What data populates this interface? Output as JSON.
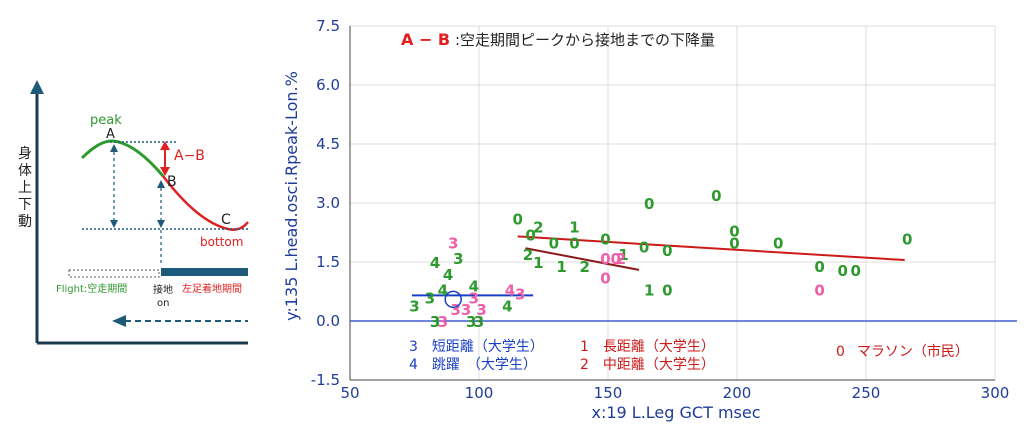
{
  "colors": {
    "green": "#2e9a2e",
    "red": "#e02020",
    "darkred": "#cc1a1a",
    "pink": "#ee5fa8",
    "blue": "#1a3fc7",
    "axis_text": "#1f3c99",
    "grid": "#dcdcdc",
    "navy": "#1e5a7a",
    "axis_dark": "#1c3b4f"
  },
  "diagram": {
    "y_axis_label": "身体上下動",
    "peak_label": "peak",
    "point_a": "A",
    "point_b": "B",
    "point_c": "C",
    "bottom_label": "bottom",
    "ab_label": "A−B",
    "flight_label": "Flight:空走期間",
    "contact_label_1": "接地",
    "contact_label_2": "on",
    "stance_label": "左足着地期間"
  },
  "chart_data": {
    "type": "scatter",
    "title_ab": "A − B",
    "title_rest": ":空走期間ピークから接地までの下降量",
    "xlabel": "x:19 L.Leg GCT msec",
    "ylabel": "y:135 L.head.osci.Rpeak-Lon.%",
    "xlim": [
      50,
      300
    ],
    "ylim": [
      -1.5,
      7.5
    ],
    "x_ticks": [
      50,
      100,
      150,
      200,
      250,
      300
    ],
    "y_ticks": [
      -1.5,
      0.0,
      1.5,
      3.0,
      4.5,
      6.0,
      7.5
    ],
    "x_tick_labels": [
      "50",
      "100",
      "150",
      "200",
      "250",
      "300"
    ],
    "y_tick_labels": [
      "-1.5",
      "0.0",
      "1.5",
      "3.0",
      "4.5",
      "6.0",
      "7.5"
    ],
    "grid": true,
    "baseline_y": 0.0,
    "legend": [
      {
        "marker": "3",
        "label": "短距離（大学生）",
        "color": "#1a3fc7"
      },
      {
        "marker": "4",
        "label": "跳躍　（大学生）",
        "color": "#1a3fc7"
      },
      {
        "marker": "1",
        "label": "長距離（大学生）",
        "color": "#cc1a1a"
      },
      {
        "marker": "2",
        "label": "中距離（大学生）",
        "color": "#cc1a1a"
      },
      {
        "marker": "0",
        "label": "マラソン（市民）",
        "color": "#cc1a1a"
      }
    ],
    "points": [
      {
        "x": 115,
        "y": 2.6,
        "m": "0",
        "c": "green"
      },
      {
        "x": 120,
        "y": 2.2,
        "m": "0",
        "c": "green"
      },
      {
        "x": 129,
        "y": 2.0,
        "m": "0",
        "c": "green"
      },
      {
        "x": 137,
        "y": 2.0,
        "m": "0",
        "c": "green"
      },
      {
        "x": 149,
        "y": 2.1,
        "m": "0",
        "c": "green"
      },
      {
        "x": 164,
        "y": 1.9,
        "m": "0",
        "c": "green"
      },
      {
        "x": 173,
        "y": 1.8,
        "m": "0",
        "c": "green"
      },
      {
        "x": 166,
        "y": 3.0,
        "m": "0",
        "c": "green"
      },
      {
        "x": 192,
        "y": 3.2,
        "m": "0",
        "c": "green"
      },
      {
        "x": 199,
        "y": 2.3,
        "m": "0",
        "c": "green"
      },
      {
        "x": 199,
        "y": 2.0,
        "m": "0",
        "c": "green"
      },
      {
        "x": 216,
        "y": 2.0,
        "m": "0",
        "c": "green"
      },
      {
        "x": 232,
        "y": 1.4,
        "m": "0",
        "c": "green"
      },
      {
        "x": 241,
        "y": 1.3,
        "m": "0",
        "c": "green"
      },
      {
        "x": 246,
        "y": 1.3,
        "m": "0",
        "c": "green"
      },
      {
        "x": 266,
        "y": 2.1,
        "m": "0",
        "c": "green"
      },
      {
        "x": 173,
        "y": 0.8,
        "m": "0",
        "c": "green"
      },
      {
        "x": 149,
        "y": 1.6,
        "m": "0",
        "c": "pink"
      },
      {
        "x": 153,
        "y": 1.6,
        "m": "0",
        "c": "pink"
      },
      {
        "x": 149,
        "y": 1.1,
        "m": "0",
        "c": "pink"
      },
      {
        "x": 232,
        "y": 0.8,
        "m": "0",
        "c": "pink"
      },
      {
        "x": 137,
        "y": 2.4,
        "m": "1",
        "c": "green"
      },
      {
        "x": 123,
        "y": 1.5,
        "m": "1",
        "c": "green"
      },
      {
        "x": 132,
        "y": 1.4,
        "m": "1",
        "c": "green"
      },
      {
        "x": 156,
        "y": 1.7,
        "m": "1",
        "c": "green"
      },
      {
        "x": 166,
        "y": 0.8,
        "m": "1",
        "c": "green"
      },
      {
        "x": 123,
        "y": 2.4,
        "m": "2",
        "c": "green"
      },
      {
        "x": 119,
        "y": 1.7,
        "m": "2",
        "c": "green"
      },
      {
        "x": 141,
        "y": 1.4,
        "m": "2",
        "c": "green"
      },
      {
        "x": 155,
        "y": 1.6,
        "m": "2",
        "c": "pink"
      },
      {
        "x": 83,
        "y": 1.5,
        "m": "4",
        "c": "green"
      },
      {
        "x": 88,
        "y": 1.2,
        "m": "4",
        "c": "green"
      },
      {
        "x": 98,
        "y": 0.9,
        "m": "4",
        "c": "green"
      },
      {
        "x": 111,
        "y": 0.4,
        "m": "4",
        "c": "green"
      },
      {
        "x": 86,
        "y": 0.8,
        "m": "4",
        "c": "green"
      },
      {
        "x": 92,
        "y": 1.6,
        "m": "3",
        "c": "green"
      },
      {
        "x": 75,
        "y": 0.4,
        "m": "3",
        "c": "green"
      },
      {
        "x": 81,
        "y": 0.6,
        "m": "3",
        "c": "green"
      },
      {
        "x": 83,
        "y": 0.0,
        "m": "3",
        "c": "green"
      },
      {
        "x": 97,
        "y": 0.0,
        "m": "3",
        "c": "green"
      },
      {
        "x": 100,
        "y": 0.0,
        "m": "3",
        "c": "green"
      },
      {
        "x": 90,
        "y": 2.0,
        "m": "3",
        "c": "pink"
      },
      {
        "x": 86,
        "y": 0.0,
        "m": "3",
        "c": "pink"
      },
      {
        "x": 91,
        "y": 0.3,
        "m": "3",
        "c": "pink"
      },
      {
        "x": 95,
        "y": 0.3,
        "m": "3",
        "c": "pink"
      },
      {
        "x": 101,
        "y": 0.3,
        "m": "3",
        "c": "pink"
      },
      {
        "x": 98,
        "y": 0.6,
        "m": "3",
        "c": "pink"
      },
      {
        "x": 116,
        "y": 0.7,
        "m": "3",
        "c": "pink"
      },
      {
        "x": 112,
        "y": 0.8,
        "m": "4",
        "c": "pink"
      }
    ],
    "highlight_circle": {
      "x": 90,
      "y": 0.55
    },
    "fit_lines": [
      {
        "x1": 115,
        "x2": 265,
        "y1": 2.15,
        "y2": 1.55,
        "color": "#cc1a1a"
      },
      {
        "x1": 118,
        "x2": 162,
        "y1": 1.85,
        "y2": 1.3,
        "color": "#8b1a1a"
      },
      {
        "x1": 74,
        "x2": 121,
        "y1": 0.65,
        "y2": 0.65,
        "color": "#1a3fc7"
      }
    ]
  }
}
